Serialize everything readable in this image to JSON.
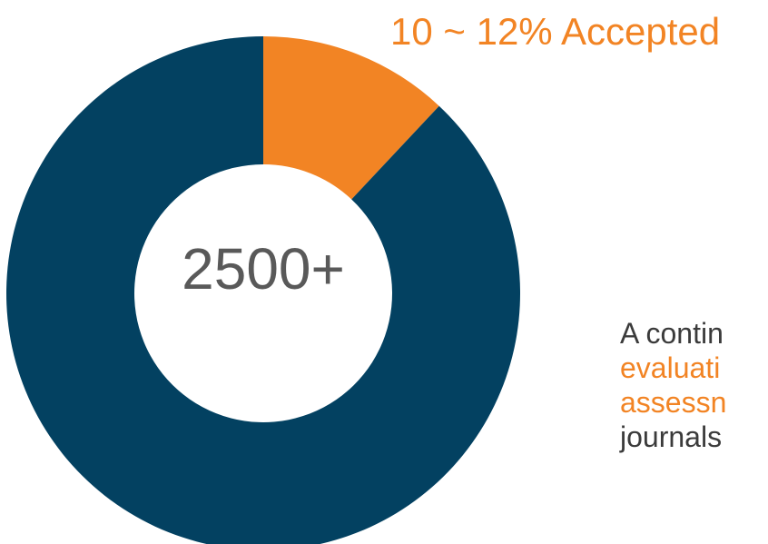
{
  "colors": {
    "rejected": "#034161",
    "accepted": "#f28424",
    "text_gray": "#595959",
    "text_dark": "#3b3b3b"
  },
  "chart_data": {
    "type": "pie",
    "variant": "donut",
    "center_label": "2500+",
    "slices": [
      {
        "label": "10 ~ 12% Accepted",
        "value": 12,
        "color": "#f28424"
      },
      {
        "value": 88,
        "color": "#034161"
      }
    ],
    "annotations": [
      {
        "text": "10 ~ 12% Accepted",
        "color": "#f28424"
      }
    ]
  },
  "side_text": {
    "line1": "A contin",
    "line2": "evaluati",
    "line3": "assessn",
    "line4": "journals"
  }
}
